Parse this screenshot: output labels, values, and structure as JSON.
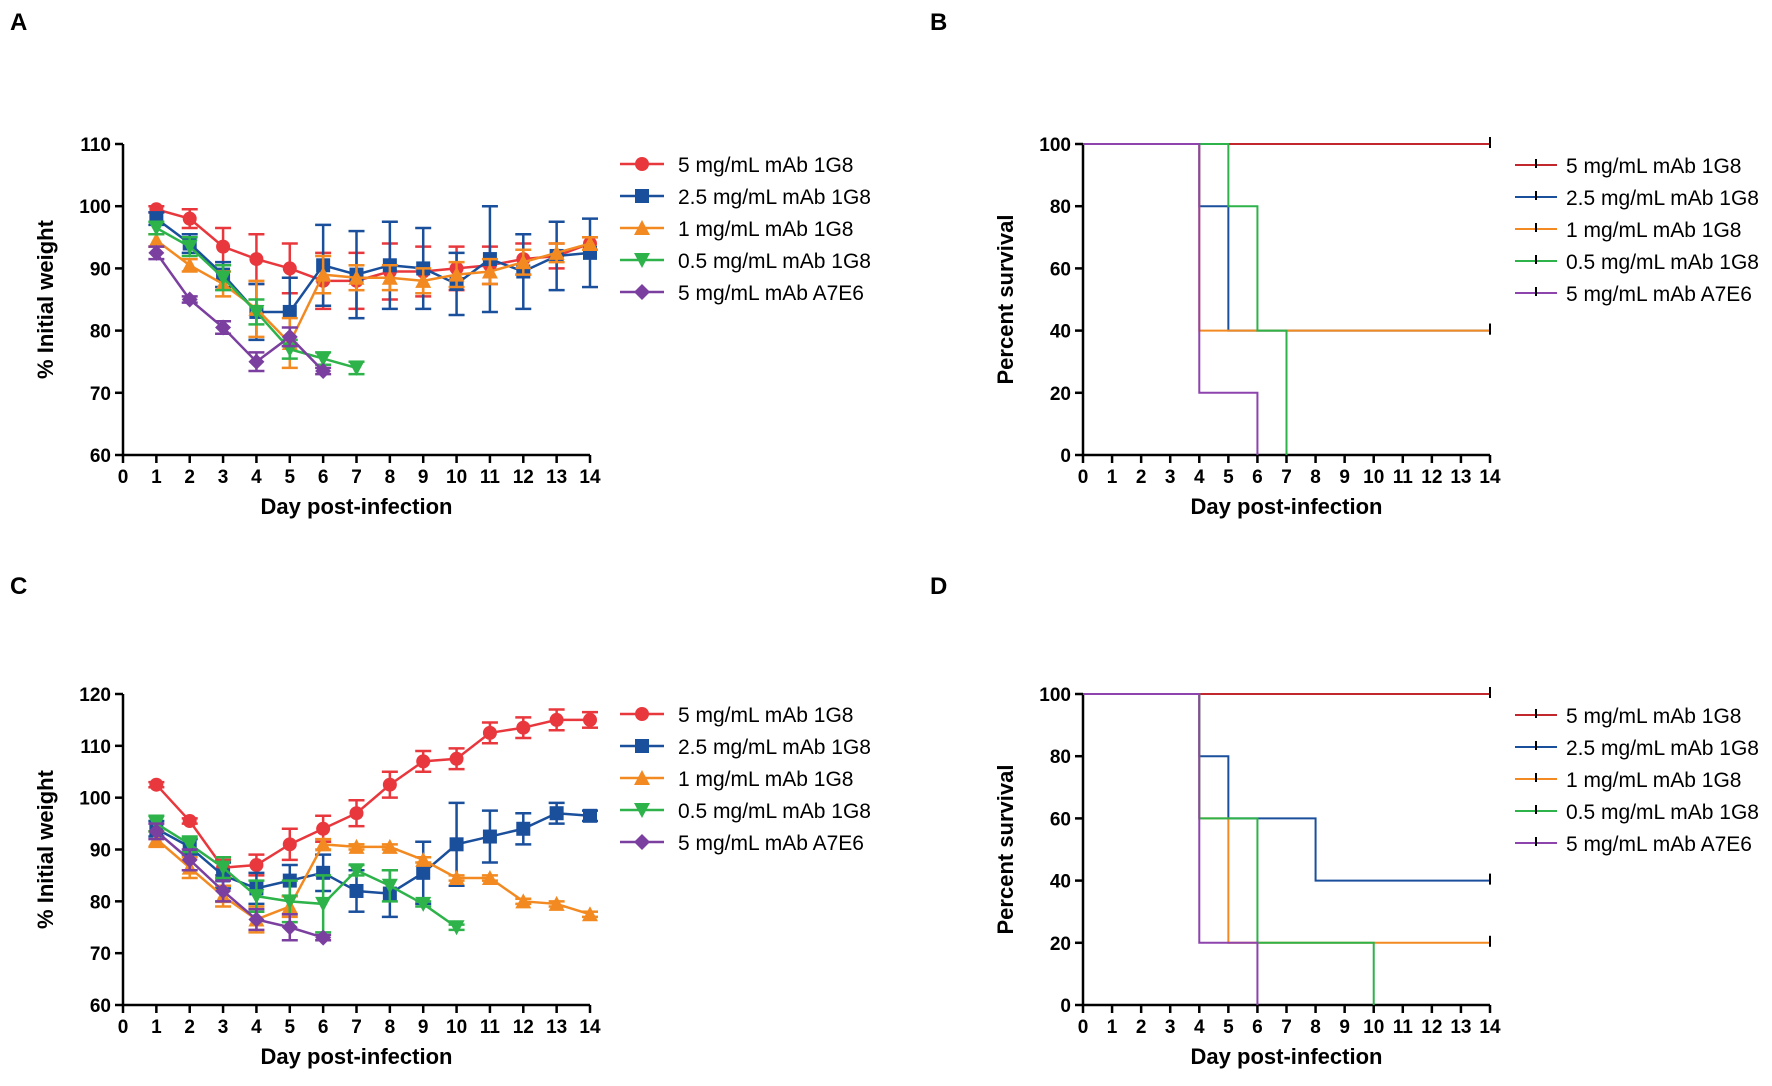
{
  "panel_labels": [
    "A",
    "B",
    "C",
    "D"
  ],
  "chart_data": [
    {
      "panel": "A",
      "type": "line",
      "xlabel": "Day post-infection",
      "ylabel": "% Initial weight",
      "xlim": [
        0,
        14
      ],
      "ylim": [
        60,
        110
      ],
      "xticks": [
        0,
        1,
        2,
        3,
        4,
        5,
        6,
        7,
        8,
        9,
        10,
        11,
        12,
        13,
        14
      ],
      "yticks": [
        60,
        70,
        80,
        90,
        100,
        110
      ],
      "legend_position": "right",
      "series": [
        {
          "name": "5 mg/mL mAb 1G8",
          "color": "#e8383d",
          "marker": "circle",
          "x": [
            1,
            2,
            3,
            4,
            5,
            6,
            7,
            8,
            9,
            10,
            11,
            12,
            13,
            14
          ],
          "y": [
            99.5,
            98,
            93.5,
            91.5,
            90,
            88,
            88,
            89.5,
            89.5,
            90,
            90.5,
            91.5,
            92,
            94
          ],
          "err": [
            0.5,
            1.5,
            3,
            4,
            4,
            4.5,
            4.5,
            4.5,
            4,
            3.5,
            3,
            2.5,
            2,
            1
          ]
        },
        {
          "name": "2.5 mg/mL mAb 1G8",
          "color": "#1a4f9c",
          "marker": "square",
          "x": [
            1,
            2,
            3,
            4,
            5,
            6,
            7,
            8,
            9,
            10,
            11,
            12,
            13,
            14
          ],
          "y": [
            98,
            94,
            89,
            83,
            83,
            90.5,
            89,
            90.5,
            90,
            87.5,
            91.5,
            89.5,
            92,
            92.5
          ],
          "err": [
            1,
            1.5,
            2,
            4.5,
            5.5,
            6.5,
            7,
            7,
            6.5,
            5,
            8.5,
            6,
            5.5,
            5.5
          ]
        },
        {
          "name": "1 mg/mL mAb 1G8",
          "color": "#f28a21",
          "marker": "triangle-up",
          "x": [
            1,
            2,
            3,
            4,
            5,
            6,
            7,
            8,
            9,
            10,
            11,
            12,
            13,
            14
          ],
          "y": [
            94.5,
            90.5,
            87.5,
            83.5,
            78,
            89,
            88.5,
            88.5,
            88,
            89,
            89.5,
            91,
            92.5,
            94
          ],
          "err": [
            1,
            1,
            2,
            4.5,
            4,
            3,
            2,
            2,
            2,
            2,
            2,
            2,
            1.5,
            1
          ]
        },
        {
          "name": "0.5 mg/mL mAb 1G8",
          "color": "#2db34a",
          "marker": "triangle-down",
          "x": [
            1,
            2,
            3,
            4,
            5,
            6,
            7
          ],
          "y": [
            96.5,
            93.5,
            88.5,
            83,
            77,
            75.5,
            74
          ],
          "err": [
            1,
            1.5,
            2,
            2,
            1.5,
            1,
            1
          ]
        },
        {
          "name": "5 mg/mL mAb A7E6",
          "color": "#7b3fa0",
          "marker": "diamond",
          "x": [
            1,
            2,
            3,
            4,
            5,
            6
          ],
          "y": [
            92.5,
            85,
            80.5,
            75,
            79,
            73.5
          ],
          "err": [
            1,
            0.5,
            1,
            1.5,
            1.5,
            0.5
          ]
        }
      ]
    },
    {
      "panel": "B",
      "type": "line",
      "subtype": "survival-step",
      "xlabel": "Day post-infection",
      "ylabel": "Percent survival",
      "xlim": [
        0,
        14
      ],
      "ylim": [
        0,
        100
      ],
      "xticks": [
        0,
        1,
        2,
        3,
        4,
        5,
        6,
        7,
        8,
        9,
        10,
        11,
        12,
        13,
        14
      ],
      "yticks": [
        0,
        20,
        40,
        60,
        80,
        100
      ],
      "legend_position": "right",
      "series": [
        {
          "name": "5 mg/mL mAb 1G8",
          "color": "#c1272d",
          "x": [
            0,
            14
          ],
          "y": [
            100,
            100
          ]
        },
        {
          "name": "2.5 mg/mL mAb 1G8",
          "color": "#1a4f9c",
          "x": [
            0,
            4,
            5,
            14
          ],
          "y": [
            100,
            80,
            40,
            40
          ]
        },
        {
          "name": "1 mg/mL mAb 1G8",
          "color": "#f28a21",
          "x": [
            0,
            4,
            14
          ],
          "y": [
            100,
            40,
            40
          ]
        },
        {
          "name": "0.5 mg/mL mAb 1G8",
          "color": "#2db34a",
          "x": [
            0,
            5,
            6,
            7
          ],
          "y": [
            100,
            80,
            40,
            0
          ]
        },
        {
          "name": "5 mg/mL mAb A7E6",
          "color": "#8e44ad",
          "x": [
            0,
            4,
            6
          ],
          "y": [
            100,
            20,
            0
          ]
        }
      ]
    },
    {
      "panel": "C",
      "type": "line",
      "xlabel": "Day post-infection",
      "ylabel": "% Initial weight",
      "xlim": [
        0,
        14
      ],
      "ylim": [
        60,
        120
      ],
      "xticks": [
        0,
        1,
        2,
        3,
        4,
        5,
        6,
        7,
        8,
        9,
        10,
        11,
        12,
        13,
        14
      ],
      "yticks": [
        60,
        70,
        80,
        90,
        100,
        110,
        120
      ],
      "legend_position": "right",
      "series": [
        {
          "name": "5 mg/mL mAb 1G8",
          "color": "#e8383d",
          "marker": "circle",
          "x": [
            1,
            2,
            3,
            4,
            5,
            6,
            7,
            8,
            9,
            10,
            11,
            12,
            13,
            14
          ],
          "y": [
            102.5,
            95.5,
            86.5,
            87,
            91,
            94,
            97,
            102.5,
            107,
            107.5,
            112.5,
            113.5,
            115,
            115
          ],
          "err": [
            0.5,
            0.5,
            1.5,
            2,
            3,
            2.5,
            2.5,
            2.5,
            2,
            2,
            2,
            2,
            2,
            1.5
          ]
        },
        {
          "name": "2.5 mg/mL mAb 1G8",
          "color": "#1a4f9c",
          "marker": "square",
          "x": [
            1,
            2,
            3,
            4,
            5,
            6,
            7,
            8,
            9,
            10,
            11,
            12,
            13,
            14
          ],
          "y": [
            94,
            90.5,
            85,
            82.5,
            84,
            85.5,
            82,
            81.5,
            85.5,
            91,
            92.5,
            94,
            97,
            96.5
          ],
          "err": [
            1.5,
            1.5,
            2.5,
            3,
            3,
            3.5,
            4,
            4.5,
            6,
            8,
            5,
            3,
            2,
            1
          ]
        },
        {
          "name": "1 mg/mL mAb 1G8",
          "color": "#f28a21",
          "marker": "triangle-up",
          "x": [
            1,
            2,
            3,
            4,
            5,
            6,
            7,
            8,
            9,
            10,
            11,
            12,
            13,
            14
          ],
          "y": [
            92,
            86.5,
            81,
            76.5,
            79,
            91,
            90.5,
            90.5,
            88,
            84.5,
            84.5,
            80,
            79.5,
            77.5
          ],
          "err": [
            1.5,
            2,
            2,
            2.5,
            2,
            1,
            0.5,
            0.5,
            0.5,
            0.5,
            0.5,
            0.5,
            0.5,
            0.5
          ]
        },
        {
          "name": "0.5 mg/mL mAb 1G8",
          "color": "#2db34a",
          "marker": "triangle-down",
          "x": [
            1,
            2,
            3,
            4,
            5,
            6,
            7,
            8,
            9,
            10
          ],
          "y": [
            95,
            91,
            86.5,
            81,
            80,
            79.5,
            86,
            83,
            79.5,
            75
          ],
          "err": [
            1.5,
            1.5,
            2,
            3,
            4,
            5.5,
            1,
            3,
            0.5,
            0.5
          ]
        },
        {
          "name": "5 mg/mL mAb A7E6",
          "color": "#7b3fa0",
          "marker": "diamond",
          "x": [
            1,
            2,
            3,
            4,
            5,
            6
          ],
          "y": [
            93.5,
            88,
            82,
            76.5,
            75,
            73
          ],
          "err": [
            1.5,
            2,
            2,
            2,
            2.5,
            0.5
          ]
        }
      ]
    },
    {
      "panel": "D",
      "type": "line",
      "subtype": "survival-step",
      "xlabel": "Day post-infection",
      "ylabel": "Percent survival",
      "xlim": [
        0,
        14
      ],
      "ylim": [
        0,
        100
      ],
      "xticks": [
        0,
        1,
        2,
        3,
        4,
        5,
        6,
        7,
        8,
        9,
        10,
        11,
        12,
        13,
        14
      ],
      "yticks": [
        0,
        20,
        40,
        60,
        80,
        100
      ],
      "legend_position": "right",
      "series": [
        {
          "name": "5 mg/mL mAb 1G8",
          "color": "#c1272d",
          "x": [
            0,
            14
          ],
          "y": [
            100,
            100
          ]
        },
        {
          "name": "2.5 mg/mL mAb 1G8",
          "color": "#1a4f9c",
          "x": [
            0,
            4,
            5,
            8,
            14
          ],
          "y": [
            100,
            80,
            60,
            40,
            40
          ]
        },
        {
          "name": "1 mg/mL mAb 1G8",
          "color": "#f28a21",
          "x": [
            0,
            4,
            5,
            14
          ],
          "y": [
            100,
            60,
            20,
            20
          ]
        },
        {
          "name": "0.5 mg/mL mAb 1G8",
          "color": "#2db34a",
          "x": [
            0,
            4,
            6,
            10
          ],
          "y": [
            100,
            60,
            20,
            0
          ]
        },
        {
          "name": "5 mg/mL mAb A7E6",
          "color": "#8e44ad",
          "x": [
            0,
            4,
            6
          ],
          "y": [
            100,
            20,
            0
          ]
        }
      ]
    }
  ]
}
